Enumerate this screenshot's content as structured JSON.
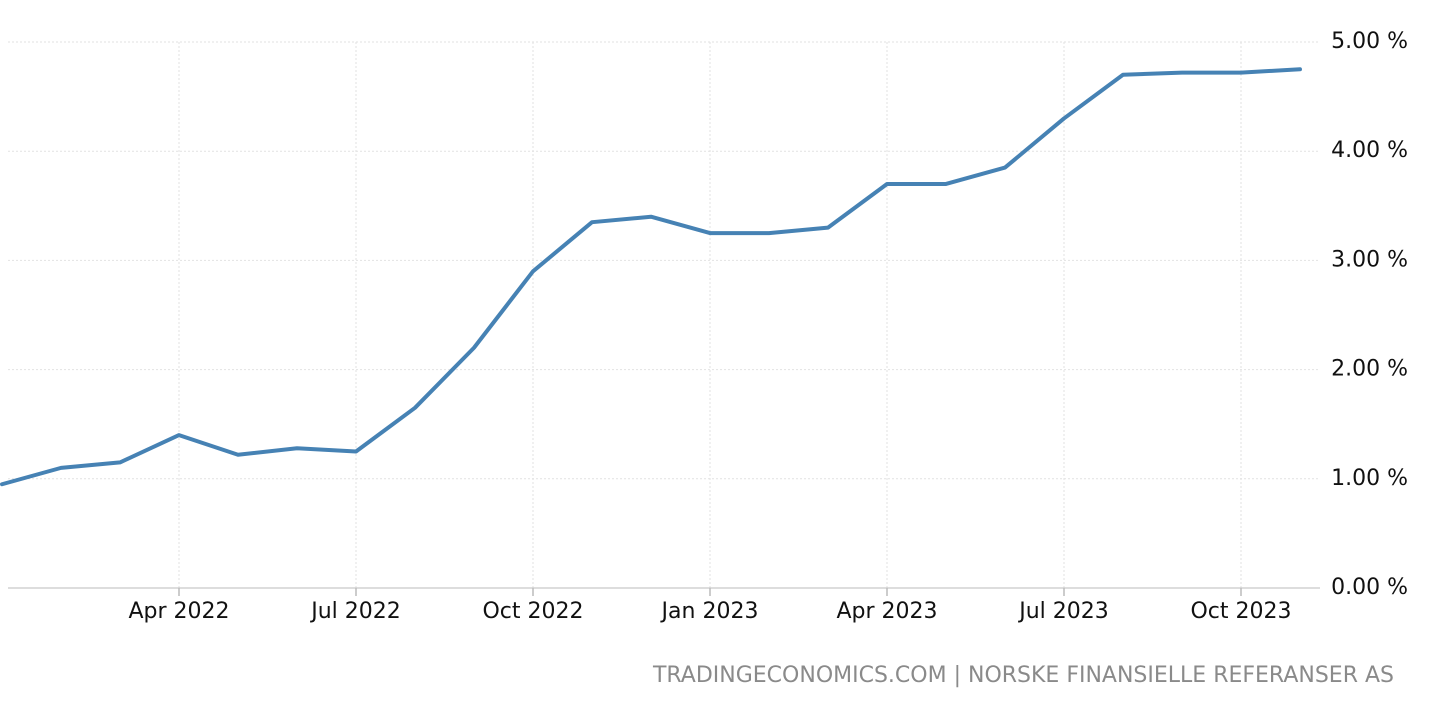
{
  "chart_data": {
    "type": "line",
    "source": "TRADINGECONOMICS.COM | NORSKE FINANSIELLE REFERANSER AS",
    "x": [
      "2022-01",
      "2022-02",
      "2022-03",
      "2022-04",
      "2022-05",
      "2022-06",
      "2022-07",
      "2022-08",
      "2022-09",
      "2022-10",
      "2022-11",
      "2022-12",
      "2023-01",
      "2023-02",
      "2023-03",
      "2023-04",
      "2023-05",
      "2023-06",
      "2023-07",
      "2023-08",
      "2023-09",
      "2023-10",
      "2023-11"
    ],
    "series": [
      {
        "name": null,
        "color": "#4682b4",
        "values": [
          0.95,
          1.1,
          1.15,
          1.4,
          1.22,
          1.28,
          1.25,
          1.65,
          2.2,
          2.9,
          3.35,
          3.4,
          3.25,
          3.25,
          3.3,
          3.7,
          3.7,
          3.85,
          4.3,
          4.7,
          4.72,
          4.72,
          4.75
        ]
      }
    ],
    "xlim": [
      "2022-01",
      "2023-11"
    ],
    "xticks": [
      {
        "value": "2022-04",
        "label": "Apr 2022"
      },
      {
        "value": "2022-07",
        "label": "Jul 2022"
      },
      {
        "value": "2022-10",
        "label": "Oct 2022"
      },
      {
        "value": "2023-01",
        "label": "Jan 2023"
      },
      {
        "value": "2023-04",
        "label": "Apr 2023"
      },
      {
        "value": "2023-07",
        "label": "Jul 2023"
      },
      {
        "value": "2023-10",
        "label": "Oct 2023"
      }
    ],
    "ylim": [
      0,
      5
    ],
    "yticks": [
      {
        "value": 0,
        "label": "0.00 %"
      },
      {
        "value": 1,
        "label": "1.00 %"
      },
      {
        "value": 2,
        "label": "2.00 %"
      },
      {
        "value": 3,
        "label": "3.00 %"
      },
      {
        "value": 4,
        "label": "4.00 %"
      },
      {
        "value": 5,
        "label": "5.00 %"
      }
    ],
    "grid": true
  }
}
